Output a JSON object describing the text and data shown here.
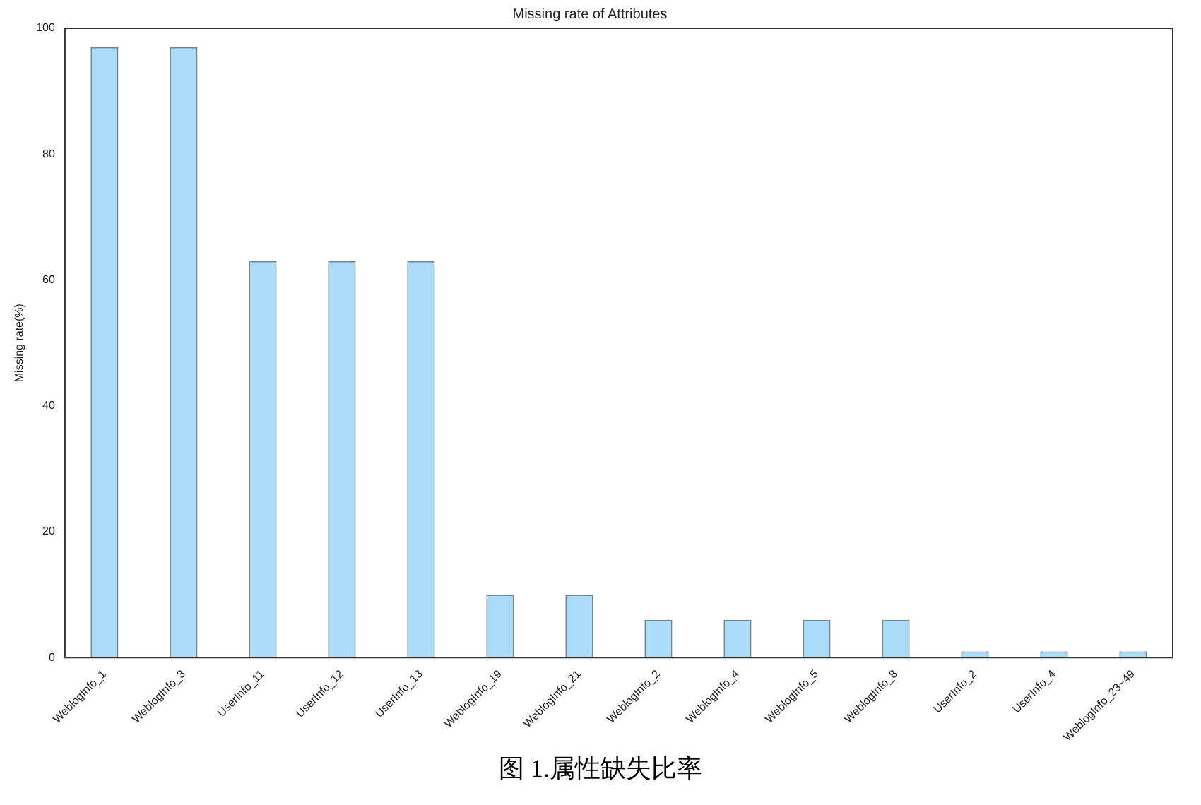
{
  "chart_data": {
    "type": "bar",
    "title": "Missing rate of Attributes",
    "ylabel": "Missing rate(%)",
    "categories": [
      "WeblogInfo_1",
      "WeblogInfo_3",
      "UserInfo_11",
      "UserInfo_12",
      "UserInfo_13",
      "WeblogInfo_19",
      "WeblogInfo_21",
      "WeblogInfo_2",
      "WeblogInfo_4",
      "WeblogInfo_5",
      "WeblogInfo_8",
      "UserInfo_2",
      "UserInfo_4",
      "WeblogInfo_23~49"
    ],
    "values": [
      97,
      97,
      63,
      63,
      63,
      10,
      10,
      6,
      6,
      6,
      6,
      1,
      1,
      1
    ],
    "color": "#aadcfa",
    "ylim": [
      0,
      100
    ],
    "yticks": [
      0,
      20,
      40,
      60,
      80,
      100
    ],
    "grid": false,
    "legend": false,
    "annotations": [
      "图 1.属性缺失比率"
    ]
  }
}
